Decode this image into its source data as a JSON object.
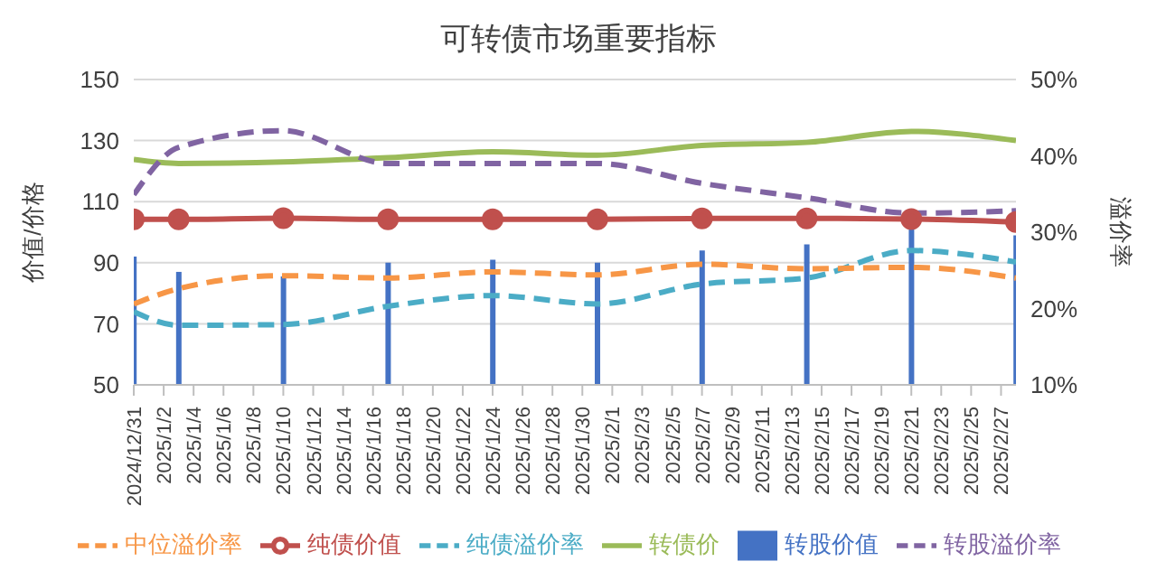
{
  "chart_data": {
    "type": "line",
    "title": "可转债市场重要指标",
    "ylabel": "价值/价格",
    "y2label": "溢价率",
    "x": [
      "2024-12-31",
      "2025-01-03",
      "2025-01-10",
      "2025-01-17",
      "2025-01-24",
      "2025-01-31",
      "2025-02-07",
      "2025-02-14",
      "2025-02-21",
      "2025-02-28"
    ],
    "xlim": [
      "2024-12-31",
      "2025-02-28"
    ],
    "xticks": [
      {
        "value": "2024-12-31",
        "label": "2024/12/31"
      },
      {
        "value": "2025-01-02",
        "label": "2025/1/2"
      },
      {
        "value": "2025-01-04",
        "label": "2025/1/4"
      },
      {
        "value": "2025-01-06",
        "label": "2025/1/6"
      },
      {
        "value": "2025-01-08",
        "label": "2025/1/8"
      },
      {
        "value": "2025-01-10",
        "label": "2025/1/10"
      },
      {
        "value": "2025-01-12",
        "label": "2025/1/12"
      },
      {
        "value": "2025-01-14",
        "label": "2025/1/14"
      },
      {
        "value": "2025-01-16",
        "label": "2025/1/16"
      },
      {
        "value": "2025-01-18",
        "label": "2025/1/18"
      },
      {
        "value": "2025-01-20",
        "label": "2025/1/20"
      },
      {
        "value": "2025-01-22",
        "label": "2025/1/22"
      },
      {
        "value": "2025-01-24",
        "label": "2025/1/24"
      },
      {
        "value": "2025-01-26",
        "label": "2025/1/26"
      },
      {
        "value": "2025-01-28",
        "label": "2025/1/28"
      },
      {
        "value": "2025-01-30",
        "label": "2025/1/30"
      },
      {
        "value": "2025-02-01",
        "label": "2025/2/1"
      },
      {
        "value": "2025-02-03",
        "label": "2025/2/3"
      },
      {
        "value": "2025-02-05",
        "label": "2025/2/5"
      },
      {
        "value": "2025-02-07",
        "label": "2025/2/7"
      },
      {
        "value": "2025-02-09",
        "label": "2025/2/9"
      },
      {
        "value": "2025-02-11",
        "label": "2025/2/11"
      },
      {
        "value": "2025-02-13",
        "label": "2025/2/13"
      },
      {
        "value": "2025-02-15",
        "label": "2025/2/15"
      },
      {
        "value": "2025-02-17",
        "label": "2025/2/17"
      },
      {
        "value": "2025-02-19",
        "label": "2025/2/19"
      },
      {
        "value": "2025-02-21",
        "label": "2025/2/21"
      },
      {
        "value": "2025-02-23",
        "label": "2025/2/23"
      },
      {
        "value": "2025-02-25",
        "label": "2025/2/25"
      },
      {
        "value": "2025-02-27",
        "label": "2025/2/27"
      }
    ],
    "ylim": [
      50,
      150
    ],
    "yticks": [
      50,
      70,
      90,
      110,
      130,
      150
    ],
    "y2lim": [
      10,
      50
    ],
    "y2ticks": [
      {
        "value": 10,
        "label": "10%"
      },
      {
        "value": 20,
        "label": "20%"
      },
      {
        "value": 30,
        "label": "30%"
      },
      {
        "value": 40,
        "label": "40%"
      },
      {
        "value": 50,
        "label": "50%"
      }
    ],
    "grid": "y",
    "legend": "bottom",
    "series": [
      {
        "name": "转股价值",
        "type": "bar",
        "color": "#4472c4",
        "values": [
          92,
          87,
          85.5,
          90,
          91,
          90,
          94,
          96,
          101,
          99
        ]
      },
      {
        "name": "纯债价值",
        "color": "#c0504d",
        "marker": "circle",
        "line_style": "solid",
        "values": [
          104.2,
          104.2,
          104.6,
          104.2,
          104.2,
          104.2,
          104.5,
          104.5,
          104.3,
          103.3
        ]
      },
      {
        "name": "转债价",
        "color": "#9bbb59",
        "marker": "none",
        "line_style": "solid",
        "values": [
          123.8,
          122.5,
          123,
          124.4,
          126.3,
          125.2,
          128.4,
          129.4,
          133,
          130
        ]
      },
      {
        "name": "转股溢价率",
        "color": "#8064a2",
        "marker": "none",
        "line_style": "dashed",
        "axis": "y2",
        "values": [
          34.9,
          41.1,
          43.3,
          39,
          39,
          39,
          36.4,
          34.5,
          32.5,
          32.8
        ]
      },
      {
        "name": "纯债溢价率",
        "color": "#4bacc6",
        "marker": "none",
        "line_style": "dashed",
        "axis": "y2",
        "values": [
          19.6,
          17.8,
          17.9,
          20.3,
          21.7,
          20.6,
          23.2,
          24,
          27.6,
          26.1
        ]
      },
      {
        "name": "中位溢价率",
        "color": "#f79646",
        "marker": "none",
        "line_style": "dashed",
        "axis": "y2",
        "values": [
          20.6,
          22.6,
          24.3,
          24,
          24.8,
          24.4,
          25.8,
          25.2,
          25.4,
          24
        ]
      }
    ]
  }
}
